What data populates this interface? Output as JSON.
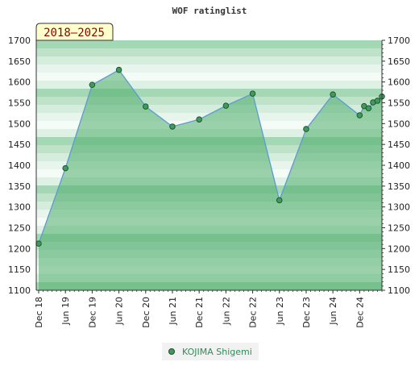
{
  "chart_data": {
    "type": "area",
    "title": "WOF ratinglist",
    "badge": "2018–2025",
    "ylim": [
      1100,
      1700
    ],
    "y_ticks": [
      1100,
      1150,
      1200,
      1250,
      1300,
      1350,
      1400,
      1450,
      1500,
      1550,
      1600,
      1650,
      1700
    ],
    "y_tick_labels": [
      "1100",
      "1150",
      "1200",
      "1250",
      "1300",
      "1350",
      "1400",
      "1450",
      "1500",
      "1550",
      "1600",
      "1650",
      "1700"
    ],
    "x_range": [
      "2018-12",
      "2025-05"
    ],
    "x_ticks": [
      "2018-12",
      "2019-06",
      "2019-12",
      "2020-06",
      "2020-12",
      "2021-06",
      "2021-12",
      "2022-06",
      "2022-12",
      "2023-06",
      "2023-12",
      "2024-06",
      "2024-12"
    ],
    "x_tick_labels": [
      "Dec 18",
      "Jun 19",
      "Dec 19",
      "Jun 20",
      "Dec 20",
      "Jun 21",
      "Dec 21",
      "Jun 22",
      "Dec 22",
      "Jun 23",
      "Dec 23",
      "Jun 24",
      "Dec 24"
    ],
    "series": [
      {
        "name": "KOJIMA Shigemi",
        "x": [
          "2018-12",
          "2019-06",
          "2019-12",
          "2020-06",
          "2020-12",
          "2021-06",
          "2021-12",
          "2022-06",
          "2022-12",
          "2023-06",
          "2023-12",
          "2024-06",
          "2024-12",
          "2025-01",
          "2025-02",
          "2025-03",
          "2025-04",
          "2025-05"
        ],
        "y": [
          1212,
          1393,
          1593,
          1629,
          1541,
          1493,
          1510,
          1543,
          1572,
          1316,
          1487,
          1570,
          1520,
          1542,
          1537,
          1551,
          1555,
          1565
        ]
      }
    ],
    "legend_placement": "bottom-center",
    "grid": false,
    "colors": {
      "line": "#5b9bd5",
      "fill": "#4fad6b",
      "marker": "#3f9a5b",
      "badge_bg": "#ffffcc",
      "badge_text": "#8b0000",
      "legend_text": "#2e8b57"
    }
  }
}
